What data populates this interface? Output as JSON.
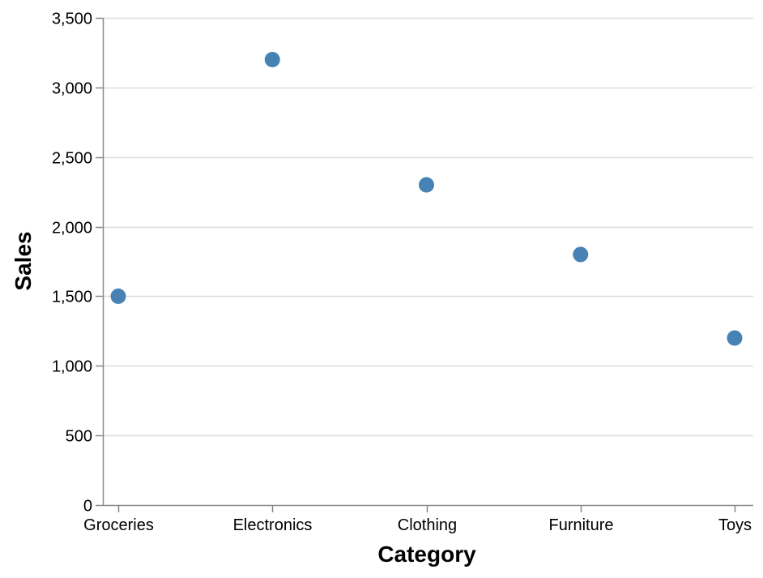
{
  "chart_data": {
    "type": "scatter",
    "title": "",
    "xlabel": "Category",
    "ylabel": "Sales",
    "categories": [
      "Groceries",
      "Electronics",
      "Clothing",
      "Furniture",
      "Toys"
    ],
    "values": [
      1500,
      3200,
      2300,
      1800,
      1200
    ],
    "ylim": [
      0,
      3500
    ],
    "yticks": [
      0,
      500,
      1000,
      1500,
      2000,
      2500,
      3000,
      3500
    ],
    "ytick_labels": [
      "0",
      "500",
      "1,000",
      "1,500",
      "2,000",
      "2,500",
      "3,000",
      "3,500"
    ],
    "grid": "horizontal",
    "legend": "none",
    "point_color": "#4682b4"
  }
}
